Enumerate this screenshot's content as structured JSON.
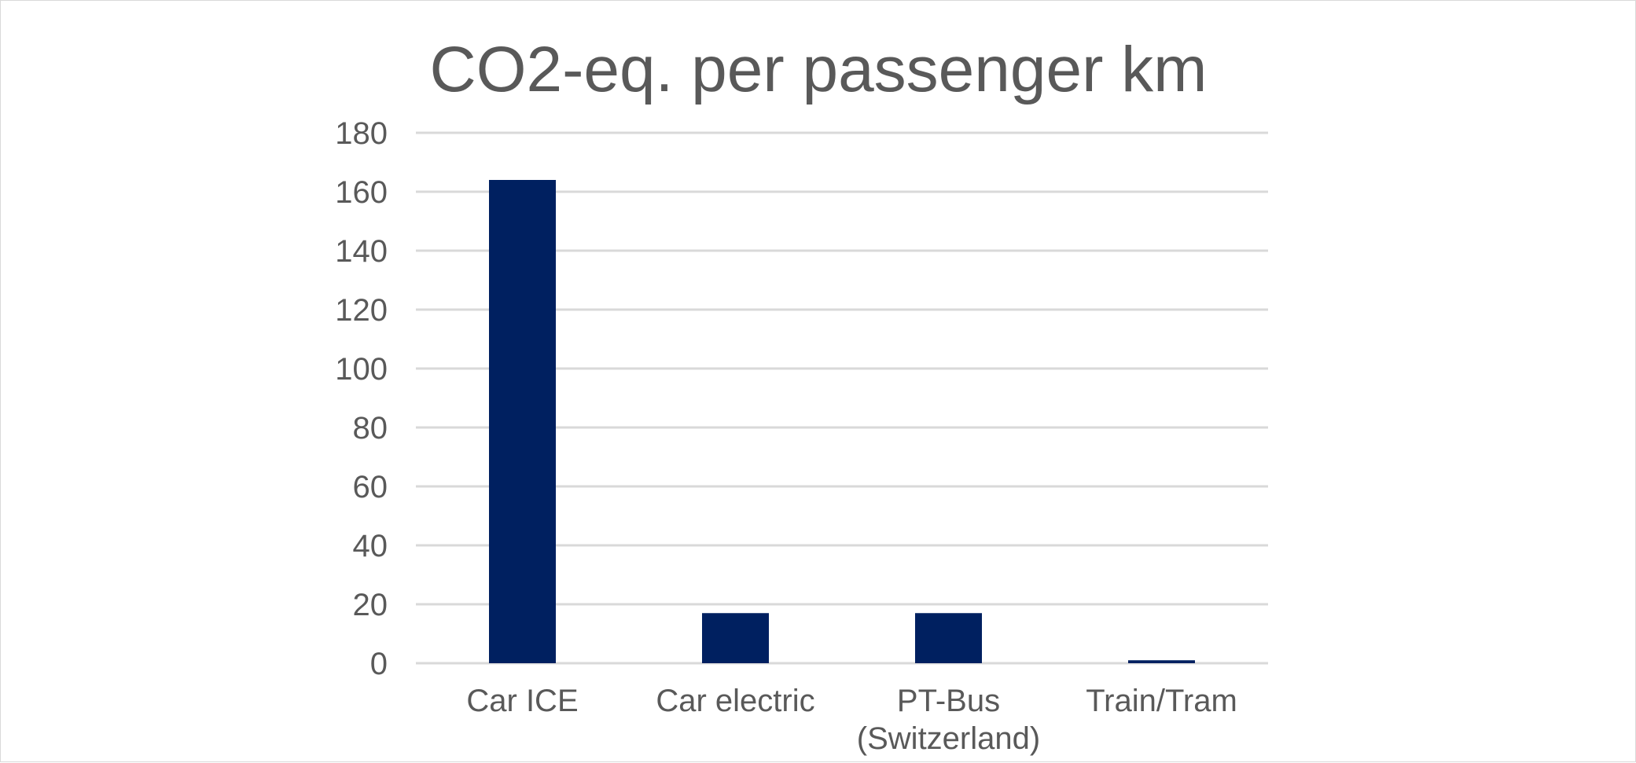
{
  "chart_data": {
    "type": "bar",
    "title": "CO2-eq. per passenger km",
    "xlabel": "",
    "ylabel": "",
    "categories": [
      [
        "Car ICE"
      ],
      [
        "Car electric"
      ],
      [
        "PT-Bus",
        "(Switzerland)"
      ],
      [
        "Train/Tram"
      ]
    ],
    "values": [
      164,
      17,
      17,
      1
    ],
    "ylim": [
      0,
      180
    ],
    "yticks": [
      "0",
      "20",
      "40",
      "60",
      "80",
      "100",
      "120",
      "140",
      "160",
      "180"
    ],
    "grid": true,
    "legend": "none",
    "bar_color": "#002060"
  }
}
